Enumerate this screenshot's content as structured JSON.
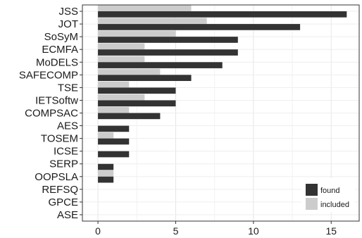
{
  "chart_data": {
    "type": "bar",
    "orientation": "horizontal",
    "categories": [
      "JSS",
      "JOT",
      "SoSyM",
      "ECMFA",
      "MoDELS",
      "SAFECOMP",
      "TSE",
      "IETSoftw",
      "COMPSAC",
      "AES",
      "TOSEM",
      "ICSE",
      "SERP",
      "OOPSLA",
      "REFSQ",
      "GPCE",
      "ASE"
    ],
    "series": [
      {
        "name": "found",
        "color": "#333333",
        "values": [
          16,
          13,
          9,
          9,
          8,
          6,
          5,
          5,
          4,
          2,
          2,
          2,
          1,
          1,
          0,
          0,
          0
        ]
      },
      {
        "name": "included",
        "color": "#cccccc",
        "values": [
          6,
          7,
          5,
          3,
          3,
          4,
          2,
          3,
          2,
          0,
          1,
          0,
          0,
          1,
          0,
          0,
          0
        ]
      }
    ],
    "xticks": [
      "0",
      "5",
      "10",
      "15"
    ],
    "xlim": [
      -1,
      16.8
    ],
    "grid": true,
    "legend_position": "bottom-right",
    "title": "",
    "xlabel": "",
    "ylabel": ""
  }
}
